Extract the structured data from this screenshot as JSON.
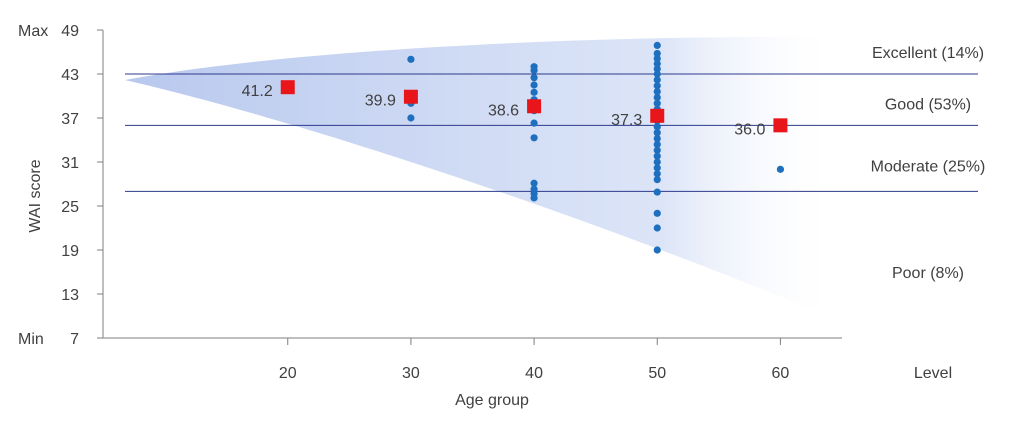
{
  "chart_data": {
    "type": "scatter",
    "xlabel": "Age group",
    "ylabel": "WAI score",
    "xlim": [
      5,
      65
    ],
    "ylim": [
      7,
      49
    ],
    "x_ticks": [
      20,
      30,
      40,
      50,
      60
    ],
    "y_ticks": [
      7,
      13,
      19,
      25,
      31,
      37,
      43,
      49
    ],
    "y_tick_prefix": {
      "7": "Min",
      "49": "Max"
    },
    "level_header": "Level",
    "level_lines": [
      43,
      36,
      27
    ],
    "levels": [
      {
        "label": "Excellent (14%)",
        "y": 46
      },
      {
        "label": "Good (53%)",
        "y": 39
      },
      {
        "label": "Moderate (25%)",
        "y": 30.5
      },
      {
        "label": "Poor (8%)",
        "y": 16
      }
    ],
    "series": [
      {
        "role": "individual",
        "color": "#1f6fbf",
        "points": [
          [
            30,
            45
          ],
          [
            30,
            39
          ],
          [
            30,
            37
          ],
          [
            40,
            44
          ],
          [
            40,
            43.5
          ],
          [
            40,
            42.5
          ],
          [
            40,
            41.5
          ],
          [
            40,
            40.5
          ],
          [
            40,
            39.5
          ],
          [
            40,
            38.7
          ],
          [
            40,
            38
          ],
          [
            40,
            36.3
          ],
          [
            40,
            34.3
          ],
          [
            40,
            28.1
          ],
          [
            40,
            27.3
          ],
          [
            40,
            26.7
          ],
          [
            40,
            26.1
          ],
          [
            50,
            46.9
          ],
          [
            50,
            45.8
          ],
          [
            50,
            45.1
          ],
          [
            50,
            44.4
          ],
          [
            50,
            43.7
          ],
          [
            50,
            43
          ],
          [
            50,
            42.2
          ],
          [
            50,
            41.4
          ],
          [
            50,
            40.6
          ],
          [
            50,
            39.8
          ],
          [
            50,
            39
          ],
          [
            50,
            38.2
          ],
          [
            50,
            37.4
          ],
          [
            50,
            36.6
          ],
          [
            50,
            35.8
          ],
          [
            50,
            35
          ],
          [
            50,
            34.2
          ],
          [
            50,
            33.4
          ],
          [
            50,
            32.6
          ],
          [
            50,
            31.8
          ],
          [
            50,
            31
          ],
          [
            50,
            30.2
          ],
          [
            50,
            29.4
          ],
          [
            50,
            28.6
          ],
          [
            50,
            26.9
          ],
          [
            50,
            24
          ],
          [
            50,
            22
          ],
          [
            50,
            19
          ],
          [
            60,
            30
          ]
        ]
      },
      {
        "role": "mean",
        "color": "#e8151b",
        "points": [
          [
            20,
            41.2
          ],
          [
            30,
            39.9
          ],
          [
            40,
            38.6
          ],
          [
            50,
            37.3
          ],
          [
            60,
            36.0
          ]
        ],
        "labels": [
          "41.2",
          "39.9",
          "38.6",
          "37.3",
          "36.0"
        ]
      }
    ],
    "colors": {
      "axis": "#7f7f7f",
      "level_line": "#2e3a8c",
      "band": "#b8c8ee"
    }
  }
}
